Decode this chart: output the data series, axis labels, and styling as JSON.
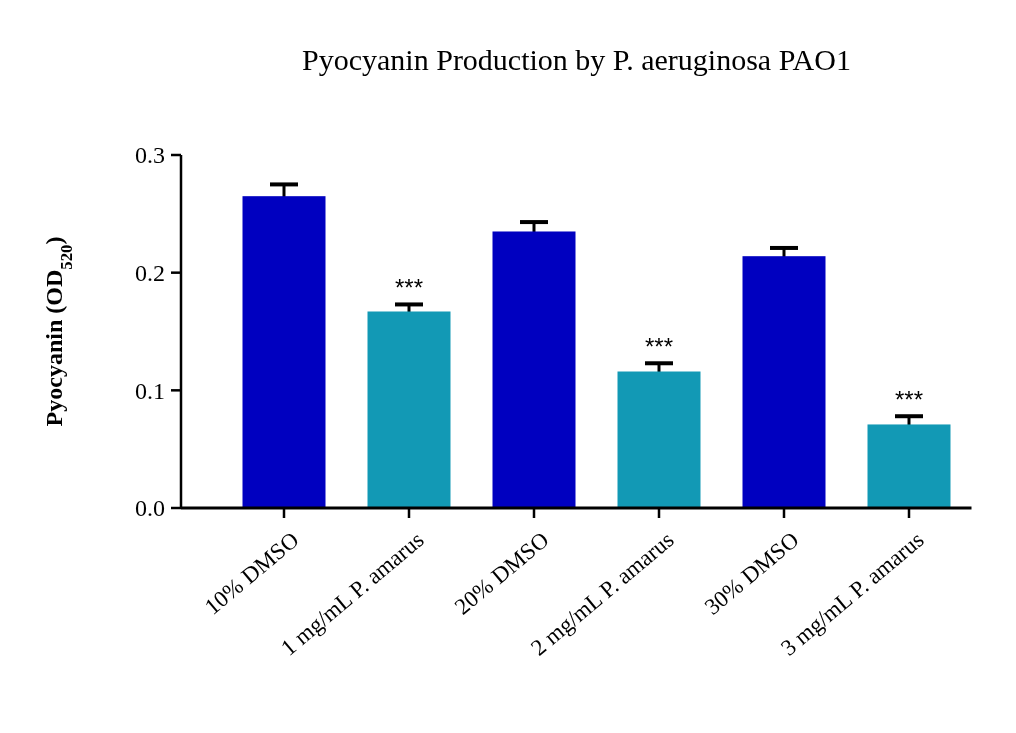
{
  "chart_data": {
    "type": "bar",
    "title": "Pyocyanin Production by P. aeruginosa PAO1",
    "ylabel": "Pyocyanin (OD$_{520}$)",
    "categories": [
      "10% DMSO",
      "1 mg/mL P. amarus",
      "20% DMSO",
      "2 mg/mL P. amarus",
      "30% DMSO",
      "3 mg/mL P. amarus"
    ],
    "values": [
      0.265,
      0.167,
      0.235,
      0.116,
      0.214,
      0.071
    ],
    "errors": [
      0.01,
      0.006,
      0.008,
      0.007,
      0.007,
      0.007
    ],
    "colors": [
      "#0000c0",
      "#1299b5",
      "#0000c0",
      "#1299b5",
      "#0000c0",
      "#1299b5"
    ],
    "ylim": [
      0,
      0.3
    ],
    "yticks": [
      {
        "value": 0,
        "label": "0.0"
      },
      0.1,
      0.2,
      0.3
    ],
    "grid": false,
    "annotations": [
      {
        "text": "***",
        "x": "1 mg/mL P. amarus",
        "y": 0.173
      },
      {
        "text": "***",
        "x": "2 mg/mL P. amarus",
        "y": 0.123
      },
      {
        "text": "***",
        "x": "3 mg/mL P. amarus",
        "y": 0.078
      }
    ]
  }
}
